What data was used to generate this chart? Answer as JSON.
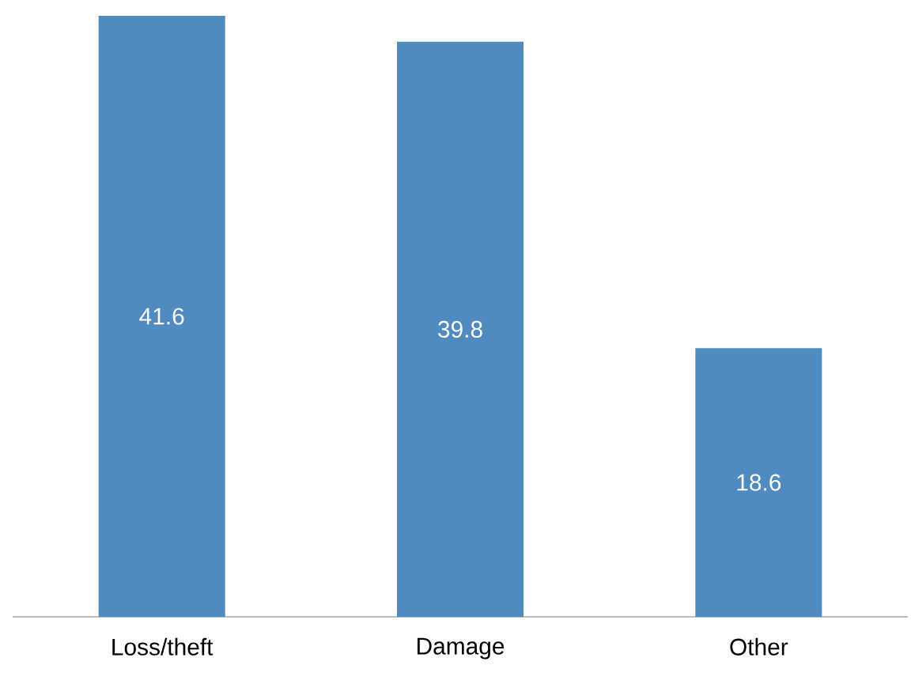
{
  "chart_data": {
    "type": "bar",
    "categories": [
      "Loss/theft",
      "Damage",
      "Other"
    ],
    "values": [
      41.6,
      39.8,
      18.6
    ],
    "color": "#4f8bc0",
    "data_labels": true
  }
}
